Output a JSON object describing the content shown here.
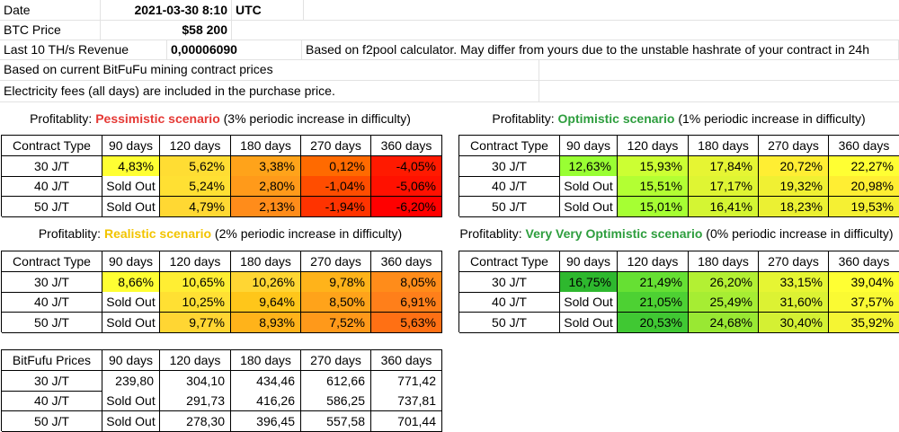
{
  "info": {
    "date_label": "Date",
    "date_value": "2021-03-30 8:10",
    "date_tz": "UTC",
    "btc_label": "BTC Price",
    "btc_value": "$58 200",
    "rev_label": "Last 10 TH/s Revenue",
    "rev_value": "0,00006090",
    "rev_note": "Based on f2pool calculator. May differ from yours due to the unstable hashrate of your contract in 24h",
    "note1": "Based on current BitFuFu mining contract prices",
    "note2": "Electricity fees (all days) are included in the purchase price."
  },
  "columns": [
    "Contract Type",
    "90 days",
    "120 days",
    "180 days",
    "270 days",
    "360 days"
  ],
  "price_header": "BitFufu Prices",
  "tables": {
    "pessimistic": {
      "title_prefix": "Profitablity: ",
      "title_keyword": "Pessimistic scenario",
      "title_suffix": " (3% periodic increase in difficulty)",
      "keyword_color": "#e53935",
      "rows": [
        {
          "label": "30 J/T",
          "cells": [
            {
              "v": "4,83%",
              "c": "#ffff33"
            },
            {
              "v": "5,62%",
              "c": "#ffdd33"
            },
            {
              "v": "3,38%",
              "c": "#ffa31a"
            },
            {
              "v": "0,12%",
              "c": "#ff6a00"
            },
            {
              "v": "-4,05%",
              "c": "#ff1a00"
            }
          ]
        },
        {
          "label": "40 J/T",
          "cells": [
            {
              "v": "Sold Out",
              "c": "#ffffff"
            },
            {
              "v": "5,24%",
              "c": "#ffe033"
            },
            {
              "v": "2,80%",
              "c": "#ff9a1a"
            },
            {
              "v": "-1,04%",
              "c": "#ff4d00"
            },
            {
              "v": "-5,06%",
              "c": "#ff1100"
            }
          ]
        },
        {
          "label": "50 J/T",
          "cells": [
            {
              "v": "Sold Out",
              "c": "#ffffff"
            },
            {
              "v": "4,79%",
              "c": "#ffd833"
            },
            {
              "v": "2,13%",
              "c": "#ff8c1a"
            },
            {
              "v": "-1,94%",
              "c": "#ff3300"
            },
            {
              "v": "-6,20%",
              "c": "#ff0000"
            }
          ]
        }
      ]
    },
    "optimistic": {
      "title_prefix": "Profitablity: ",
      "title_keyword": "Optimistic scenario",
      "title_suffix": " (1% periodic increase in difficulty)",
      "keyword_color": "#2e9e3e",
      "rows": [
        {
          "label": "30 J/T",
          "cells": [
            {
              "v": "12,63%",
              "c": "#99ff33"
            },
            {
              "v": "15,93%",
              "c": "#ccff33"
            },
            {
              "v": "17,84%",
              "c": "#e6f533"
            },
            {
              "v": "20,72%",
              "c": "#ffee33"
            },
            {
              "v": "22,27%",
              "c": "#ffff33"
            }
          ]
        },
        {
          "label": "40 J/T",
          "cells": [
            {
              "v": "Sold Out",
              "c": "#ffffff"
            },
            {
              "v": "15,51%",
              "c": "#b3ff33"
            },
            {
              "v": "17,17%",
              "c": "#dff533"
            },
            {
              "v": "19,32%",
              "c": "#f0f033"
            },
            {
              "v": "20,98%",
              "c": "#ffee33"
            }
          ]
        },
        {
          "label": "50 J/T",
          "cells": [
            {
              "v": "Sold Out",
              "c": "#ffffff"
            },
            {
              "v": "15,01%",
              "c": "#a6ff33"
            },
            {
              "v": "16,41%",
              "c": "#d4f533"
            },
            {
              "v": "18,23%",
              "c": "#ebf033"
            },
            {
              "v": "19,53%",
              "c": "#f5f033"
            }
          ]
        }
      ]
    },
    "realistic": {
      "title_prefix": "Profitablity: ",
      "title_keyword": "Realistic scenario",
      "title_suffix": " (2% periodic increase in difficulty)",
      "keyword_color": "#f2c400",
      "rows": [
        {
          "label": "30 J/T",
          "cells": [
            {
              "v": "8,66%",
              "c": "#ffff33"
            },
            {
              "v": "10,65%",
              "c": "#ffee33"
            },
            {
              "v": "10,26%",
              "c": "#ffd633"
            },
            {
              "v": "9,78%",
              "c": "#ffb31a"
            },
            {
              "v": "8,05%",
              "c": "#ff8c1a"
            }
          ]
        },
        {
          "label": "40 J/T",
          "cells": [
            {
              "v": "Sold Out",
              "c": "#ffffff"
            },
            {
              "v": "10,25%",
              "c": "#ffe033"
            },
            {
              "v": "9,64%",
              "c": "#ffc61a"
            },
            {
              "v": "8,50%",
              "c": "#ffa31a"
            },
            {
              "v": "6,91%",
              "c": "#ff7f1a"
            }
          ]
        },
        {
          "label": "50 J/T",
          "cells": [
            {
              "v": "Sold Out",
              "c": "#ffffff"
            },
            {
              "v": "9,77%",
              "c": "#ffd633"
            },
            {
              "v": "8,93%",
              "c": "#ffb31a"
            },
            {
              "v": "7,52%",
              "c": "#ff991a"
            },
            {
              "v": "5,63%",
              "c": "#ff7014"
            }
          ]
        }
      ]
    },
    "very_optimistic": {
      "title_prefix": "Profitablity: ",
      "title_keyword": "Very Very Optimistic scenario",
      "title_suffix": " (0% periodic increase in difficulty)",
      "keyword_color": "#2e9e3e",
      "rows": [
        {
          "label": "30 J/T",
          "cells": [
            {
              "v": "16,75%",
              "c": "#2eb82e"
            },
            {
              "v": "21,49%",
              "c": "#66e033"
            },
            {
              "v": "26,20%",
              "c": "#b3f033"
            },
            {
              "v": "33,15%",
              "c": "#e6f533"
            },
            {
              "v": "39,04%",
              "c": "#ffff33"
            }
          ]
        },
        {
          "label": "40 J/T",
          "cells": [
            {
              "v": "Sold Out",
              "c": "#ffffff"
            },
            {
              "v": "21,05%",
              "c": "#4dd133"
            },
            {
              "v": "25,49%",
              "c": "#a6ed33"
            },
            {
              "v": "31,60%",
              "c": "#dcf233"
            },
            {
              "v": "37,57%",
              "c": "#fafa33"
            }
          ]
        },
        {
          "label": "50 J/T",
          "cells": [
            {
              "v": "Sold Out",
              "c": "#ffffff"
            },
            {
              "v": "20,53%",
              "c": "#40c833"
            },
            {
              "v": "24,68%",
              "c": "#99e833"
            },
            {
              "v": "30,40%",
              "c": "#d4f033"
            },
            {
              "v": "35,92%",
              "c": "#f5f533"
            }
          ]
        }
      ]
    },
    "prices": {
      "rows": [
        {
          "label": "30 J/T",
          "cells": [
            {
              "v": "239,80",
              "c": "#ffffff"
            },
            {
              "v": "304,10",
              "c": "#ffffff"
            },
            {
              "v": "434,46",
              "c": "#ffffff"
            },
            {
              "v": "612,66",
              "c": "#ffffff"
            },
            {
              "v": "771,42",
              "c": "#ffffff"
            }
          ]
        },
        {
          "label": "40 J/T",
          "cells": [
            {
              "v": "Sold Out",
              "c": "#ffffff"
            },
            {
              "v": "291,73",
              "c": "#ffffff"
            },
            {
              "v": "416,26",
              "c": "#ffffff"
            },
            {
              "v": "586,25",
              "c": "#ffffff"
            },
            {
              "v": "737,81",
              "c": "#ffffff"
            }
          ]
        },
        {
          "label": "50 J/T",
          "cells": [
            {
              "v": "Sold Out",
              "c": "#ffffff"
            },
            {
              "v": "278,30",
              "c": "#ffffff"
            },
            {
              "v": "396,45",
              "c": "#ffffff"
            },
            {
              "v": "557,58",
              "c": "#ffffff"
            },
            {
              "v": "701,44",
              "c": "#ffffff"
            }
          ]
        }
      ]
    }
  }
}
